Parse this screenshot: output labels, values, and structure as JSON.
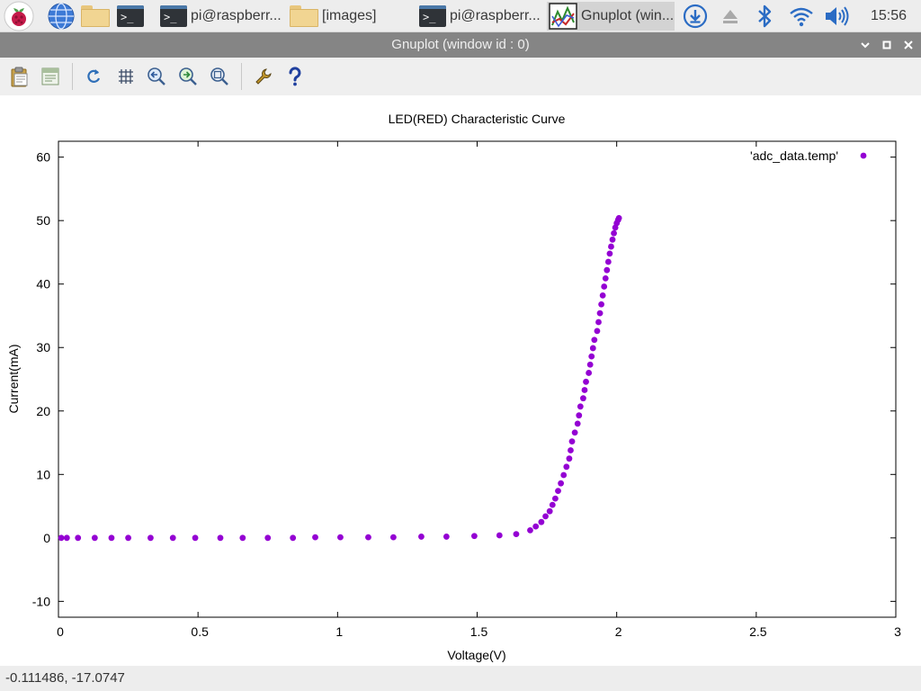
{
  "taskbar": {
    "menu_icon": "raspberry-pi-icon",
    "launchers": [
      "web-browser-icon",
      "file-manager-icon",
      "terminal-icon"
    ],
    "tasks": [
      {
        "label": "pi@raspberr...",
        "icon": "terminal-icon"
      },
      {
        "label": "[images]",
        "icon": "folder-icon"
      },
      {
        "label": "pi@raspberr...",
        "icon": "terminal-icon"
      },
      {
        "label": "Gnuplot (win...",
        "icon": "gnuplot-icon",
        "active": true
      }
    ],
    "tray": [
      "update-download-icon",
      "eject-icon",
      "bluetooth-icon",
      "wifi-icon",
      "volume-icon"
    ],
    "clock": "15:56"
  },
  "window": {
    "title": "Gnuplot (window id : 0)",
    "controls": [
      "minimize-chevron-icon",
      "maximize-icon",
      "close-icon"
    ]
  },
  "toolbar": {
    "tools": [
      "copy-to-clipboard-icon",
      "export-icon",
      "replot-icon",
      "grid-icon",
      "zoom-previous-icon",
      "zoom-next-icon",
      "autoscale-icon",
      "preferences-icon",
      "help-icon"
    ]
  },
  "chart_data": {
    "type": "scatter",
    "title": "LED(RED) Characteristic Curve",
    "xlabel": "Voltage(V)",
    "ylabel": "Current(mA)",
    "xlim": [
      0,
      3
    ],
    "ylim": [
      -12.5,
      62.5
    ],
    "x_ticks": [
      0,
      0.5,
      1,
      1.5,
      2,
      2.5,
      3
    ],
    "y_ticks": [
      -10,
      0,
      10,
      20,
      30,
      40,
      50,
      60
    ],
    "x_tick_labels": [
      "0",
      "0.5",
      "1",
      "1.5",
      "2",
      "2.5",
      "3"
    ],
    "y_tick_labels": [
      "-10",
      "0",
      "10",
      "20",
      "30",
      "40",
      "50",
      "60"
    ],
    "grid": false,
    "legend_position": "top-right",
    "series": [
      {
        "name": "'adc_data.temp'",
        "color": "#9400d3",
        "marker": "filled-circle",
        "x": [
          0.01,
          0.03,
          0.07,
          0.13,
          0.19,
          0.25,
          0.33,
          0.41,
          0.49,
          0.58,
          0.66,
          0.75,
          0.84,
          0.92,
          1.01,
          1.11,
          1.2,
          1.3,
          1.39,
          1.49,
          1.58,
          1.64,
          1.69,
          1.71,
          1.73,
          1.745,
          1.76,
          1.77,
          1.78,
          1.79,
          1.8,
          1.81,
          1.82,
          1.83,
          1.835,
          1.84,
          1.85,
          1.86,
          1.865,
          1.87,
          1.88,
          1.885,
          1.89,
          1.9,
          1.905,
          1.91,
          1.915,
          1.92,
          1.93,
          1.935,
          1.94,
          1.945,
          1.95,
          1.955,
          1.96,
          1.965,
          1.97,
          1.975,
          1.98,
          1.985,
          1.99,
          1.995,
          2.0,
          2.005,
          2.008
        ],
        "y": [
          0,
          0,
          0,
          0,
          0,
          0,
          0,
          0,
          0,
          0,
          0,
          0,
          0,
          0.1,
          0.1,
          0.1,
          0.1,
          0.2,
          0.2,
          0.3,
          0.4,
          0.6,
          1.2,
          1.8,
          2.5,
          3.4,
          4.2,
          5.2,
          6.2,
          7.4,
          8.6,
          9.9,
          11.2,
          12.5,
          13.8,
          15.2,
          16.6,
          18.0,
          19.3,
          20.7,
          22.0,
          23.3,
          24.6,
          26.0,
          27.3,
          28.6,
          29.9,
          31.2,
          32.6,
          34.0,
          35.4,
          36.8,
          38.2,
          39.6,
          40.9,
          42.2,
          43.5,
          44.8,
          45.9,
          47.0,
          48.0,
          48.9,
          49.6,
          50.1,
          50.4
        ]
      }
    ]
  },
  "statusbar": {
    "coordinates": "-0.111486, -17.0747"
  }
}
